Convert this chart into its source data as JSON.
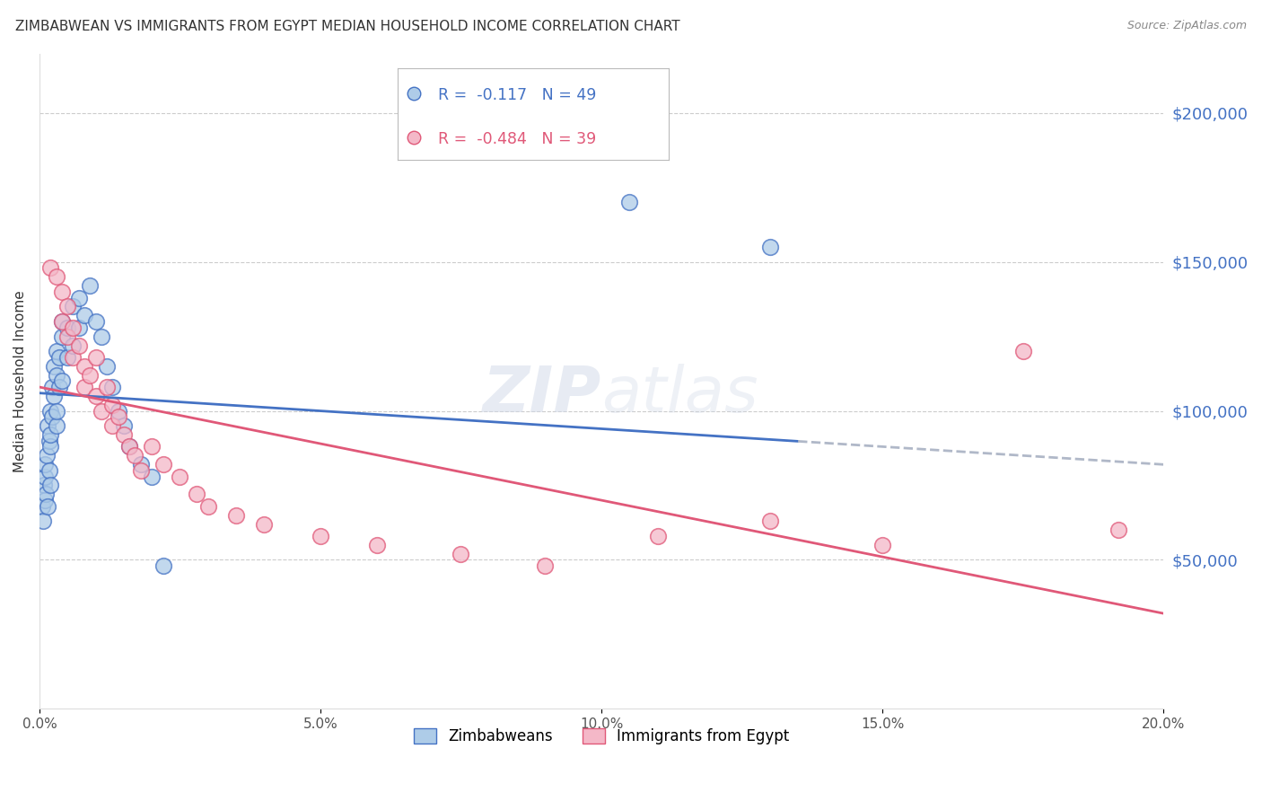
{
  "title": "ZIMBABWEAN VS IMMIGRANTS FROM EGYPT MEDIAN HOUSEHOLD INCOME CORRELATION CHART",
  "source": "Source: ZipAtlas.com",
  "ylabel": "Median Household Income",
  "right_ytick_labels": [
    "$200,000",
    "$150,000",
    "$100,000",
    "$50,000"
  ],
  "right_ytick_values": [
    200000,
    150000,
    100000,
    50000
  ],
  "ylim": [
    0,
    220000
  ],
  "xlim": [
    0.0,
    0.2
  ],
  "legend_blue_r": "-0.117",
  "legend_blue_n": "49",
  "legend_pink_r": "-0.484",
  "legend_pink_n": "39",
  "blue_color": "#aecce8",
  "blue_line_color": "#4472c4",
  "pink_color": "#f4b8c8",
  "pink_line_color": "#e05878",
  "zim_x": [
    0.0005,
    0.0007,
    0.0008,
    0.001,
    0.001,
    0.001,
    0.0012,
    0.0013,
    0.0015,
    0.0015,
    0.0017,
    0.0018,
    0.002,
    0.002,
    0.002,
    0.002,
    0.0022,
    0.0023,
    0.0025,
    0.0025,
    0.003,
    0.003,
    0.003,
    0.003,
    0.0035,
    0.0035,
    0.004,
    0.004,
    0.004,
    0.005,
    0.005,
    0.006,
    0.006,
    0.007,
    0.007,
    0.008,
    0.009,
    0.01,
    0.011,
    0.012,
    0.013,
    0.014,
    0.015,
    0.016,
    0.018,
    0.02,
    0.022,
    0.105,
    0.13
  ],
  "zim_y": [
    68000,
    63000,
    75000,
    70000,
    78000,
    82000,
    72000,
    85000,
    68000,
    95000,
    80000,
    90000,
    75000,
    88000,
    92000,
    100000,
    108000,
    98000,
    105000,
    115000,
    95000,
    100000,
    112000,
    120000,
    108000,
    118000,
    110000,
    125000,
    130000,
    118000,
    128000,
    122000,
    135000,
    128000,
    138000,
    132000,
    142000,
    130000,
    125000,
    115000,
    108000,
    100000,
    95000,
    88000,
    82000,
    78000,
    48000,
    170000,
    155000
  ],
  "egy_x": [
    0.002,
    0.003,
    0.004,
    0.004,
    0.005,
    0.005,
    0.006,
    0.006,
    0.007,
    0.008,
    0.008,
    0.009,
    0.01,
    0.01,
    0.011,
    0.012,
    0.013,
    0.013,
    0.014,
    0.015,
    0.016,
    0.017,
    0.018,
    0.02,
    0.022,
    0.025,
    0.028,
    0.03,
    0.035,
    0.04,
    0.05,
    0.06,
    0.075,
    0.09,
    0.11,
    0.13,
    0.15,
    0.175,
    0.192
  ],
  "egy_y": [
    148000,
    145000,
    140000,
    130000,
    135000,
    125000,
    128000,
    118000,
    122000,
    115000,
    108000,
    112000,
    105000,
    118000,
    100000,
    108000,
    102000,
    95000,
    98000,
    92000,
    88000,
    85000,
    80000,
    88000,
    82000,
    78000,
    72000,
    68000,
    65000,
    62000,
    58000,
    55000,
    52000,
    48000,
    58000,
    63000,
    55000,
    120000,
    60000
  ]
}
